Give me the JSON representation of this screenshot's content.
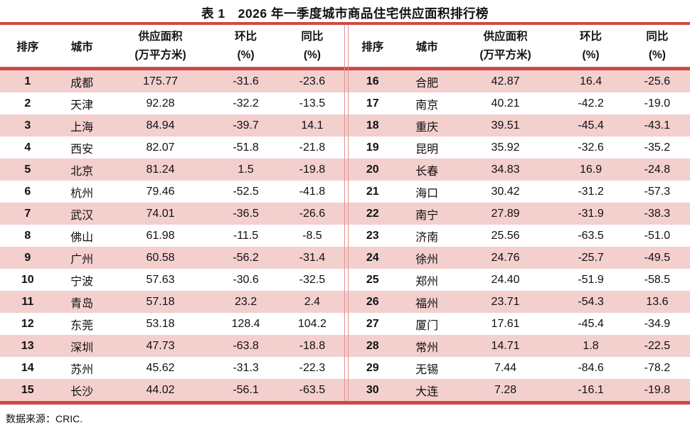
{
  "title": "表 1　2026 年一季度城市商品住宅供应面积排行榜",
  "footer": "数据来源：CRIC.",
  "colors": {
    "line_red": "#CF4A43",
    "row_pink": "#F3CFCE",
    "divider_pink": "#E0938E",
    "text": "#111111"
  },
  "columns": {
    "rank": "排序",
    "city": "城市",
    "area_line1": "供应面积",
    "area_line2": "(万平方米)",
    "mom_line1": "环比",
    "mom_line2": "(%)",
    "yoy_line1": "同比",
    "yoy_line2": "(%)"
  },
  "chart_data": {
    "type": "table",
    "title": "表 1　2026 年一季度城市商品住宅供应面积排行榜",
    "columns": [
      "排序",
      "城市",
      "供应面积(万平方米)",
      "环比(%)",
      "同比(%)"
    ],
    "left_rows": [
      {
        "rank": "1",
        "city": "成都",
        "area": "175.77",
        "mom": "-31.6",
        "yoy": "-23.6"
      },
      {
        "rank": "2",
        "city": "天津",
        "area": "92.28",
        "mom": "-32.2",
        "yoy": "-13.5"
      },
      {
        "rank": "3",
        "city": "上海",
        "area": "84.94",
        "mom": "-39.7",
        "yoy": "14.1"
      },
      {
        "rank": "4",
        "city": "西安",
        "area": "82.07",
        "mom": "-51.8",
        "yoy": "-21.8"
      },
      {
        "rank": "5",
        "city": "北京",
        "area": "81.24",
        "mom": "1.5",
        "yoy": "-19.8"
      },
      {
        "rank": "6",
        "city": "杭州",
        "area": "79.46",
        "mom": "-52.5",
        "yoy": "-41.8"
      },
      {
        "rank": "7",
        "city": "武汉",
        "area": "74.01",
        "mom": "-36.5",
        "yoy": "-26.6"
      },
      {
        "rank": "8",
        "city": "佛山",
        "area": "61.98",
        "mom": "-11.5",
        "yoy": "-8.5"
      },
      {
        "rank": "9",
        "city": "广州",
        "area": "60.58",
        "mom": "-56.2",
        "yoy": "-31.4"
      },
      {
        "rank": "10",
        "city": "宁波",
        "area": "57.63",
        "mom": "-30.6",
        "yoy": "-32.5"
      },
      {
        "rank": "11",
        "city": "青岛",
        "area": "57.18",
        "mom": "23.2",
        "yoy": "2.4"
      },
      {
        "rank": "12",
        "city": "东莞",
        "area": "53.18",
        "mom": "128.4",
        "yoy": "104.2"
      },
      {
        "rank": "13",
        "city": "深圳",
        "area": "47.73",
        "mom": "-63.8",
        "yoy": "-18.8"
      },
      {
        "rank": "14",
        "city": "苏州",
        "area": "45.62",
        "mom": "-31.3",
        "yoy": "-22.3"
      },
      {
        "rank": "15",
        "city": "长沙",
        "area": "44.02",
        "mom": "-56.1",
        "yoy": "-63.5"
      }
    ],
    "right_rows": [
      {
        "rank": "16",
        "city": "合肥",
        "area": "42.87",
        "mom": "16.4",
        "yoy": "-25.6"
      },
      {
        "rank": "17",
        "city": "南京",
        "area": "40.21",
        "mom": "-42.2",
        "yoy": "-19.0"
      },
      {
        "rank": "18",
        "city": "重庆",
        "area": "39.51",
        "mom": "-45.4",
        "yoy": "-43.1"
      },
      {
        "rank": "19",
        "city": "昆明",
        "area": "35.92",
        "mom": "-32.6",
        "yoy": "-35.2"
      },
      {
        "rank": "20",
        "city": "长春",
        "area": "34.83",
        "mom": "16.9",
        "yoy": "-24.8"
      },
      {
        "rank": "21",
        "city": "海口",
        "area": "30.42",
        "mom": "-31.2",
        "yoy": "-57.3"
      },
      {
        "rank": "22",
        "city": "南宁",
        "area": "27.89",
        "mom": "-31.9",
        "yoy": "-38.3"
      },
      {
        "rank": "23",
        "city": "济南",
        "area": "25.56",
        "mom": "-63.5",
        "yoy": "-51.0"
      },
      {
        "rank": "24",
        "city": "徐州",
        "area": "24.76",
        "mom": "-25.7",
        "yoy": "-49.5"
      },
      {
        "rank": "25",
        "city": "郑州",
        "area": "24.40",
        "mom": "-51.9",
        "yoy": "-58.5"
      },
      {
        "rank": "26",
        "city": "福州",
        "area": "23.71",
        "mom": "-54.3",
        "yoy": "13.6"
      },
      {
        "rank": "27",
        "city": "厦门",
        "area": "17.61",
        "mom": "-45.4",
        "yoy": "-34.9"
      },
      {
        "rank": "28",
        "city": "常州",
        "area": "14.71",
        "mom": "1.8",
        "yoy": "-22.5"
      },
      {
        "rank": "29",
        "city": "无锡",
        "area": "7.44",
        "mom": "-84.6",
        "yoy": "-78.2"
      },
      {
        "rank": "30",
        "city": "大连",
        "area": "7.28",
        "mom": "-16.1",
        "yoy": "-19.8"
      }
    ]
  }
}
